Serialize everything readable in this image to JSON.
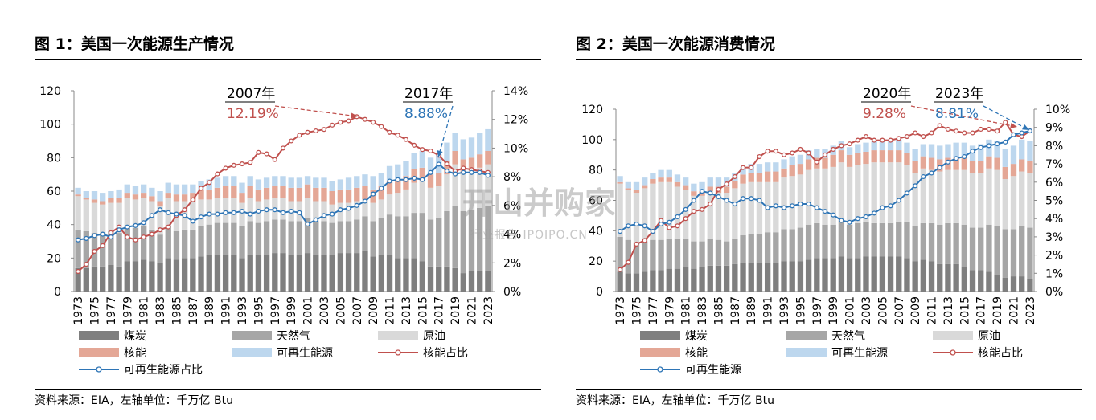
{
  "colors": {
    "coal": "#7f7f7f",
    "gas": "#a6a6a6",
    "oil": "#d9d9d9",
    "nuclear": "#e4a796",
    "renewable": "#bdd7ee",
    "nuclear_share": "#c0504d",
    "renewable_share": "#2e75b6"
  },
  "watermark": {
    "main": "开山并购家",
    "sub": "行业报告 IPOIPO.CN"
  },
  "chart_data": [
    {
      "type": "bar",
      "title": "图 1：美国一次能源生产情况",
      "source": "资料来源：EIA，左轴单位：千万亿 Btu",
      "years": [
        1973,
        1974,
        1975,
        1976,
        1977,
        1978,
        1979,
        1980,
        1981,
        1982,
        1983,
        1984,
        1985,
        1986,
        1987,
        1988,
        1989,
        1990,
        1991,
        1992,
        1993,
        1994,
        1995,
        1996,
        1997,
        1998,
        1999,
        2000,
        2001,
        2002,
        2003,
        2004,
        2005,
        2006,
        2007,
        2008,
        2009,
        2010,
        2011,
        2012,
        2013,
        2014,
        2015,
        2016,
        2017,
        2018,
        2019,
        2020,
        2021,
        2022,
        2023
      ],
      "x_tick_labels": [
        "1973",
        "1975",
        "1977",
        "1979",
        "1981",
        "1983",
        "1985",
        "1987",
        "1989",
        "1991",
        "1993",
        "1995",
        "1997",
        "1999",
        "2001",
        "2003",
        "2005",
        "2007",
        "2009",
        "2011",
        "2013",
        "2015",
        "2017",
        "2019",
        "2021",
        "2023"
      ],
      "ylim_left": [
        0,
        120
      ],
      "yticks_left": [
        "0",
        "20",
        "40",
        "60",
        "80",
        "100",
        "120"
      ],
      "ylim_right": [
        0,
        14
      ],
      "yticks_right": [
        "0%",
        "2%",
        "4%",
        "6%",
        "8%",
        "10%",
        "12%",
        "14%"
      ],
      "series": [
        {
          "name": "煤炭",
          "kind": "bar",
          "values": [
            14,
            14,
            15,
            15,
            16,
            15,
            18,
            18,
            19,
            18,
            17,
            20,
            19,
            20,
            20,
            21,
            22,
            22,
            22,
            22,
            20,
            22,
            22,
            22,
            23,
            23,
            22,
            22,
            23,
            22,
            22,
            22,
            23,
            23,
            23,
            24,
            21,
            22,
            22,
            20,
            20,
            20,
            18,
            15,
            15,
            15,
            14,
            11,
            12,
            12,
            12
          ]
        },
        {
          "name": "天然气",
          "kind": "bar",
          "values": [
            23,
            22,
            20,
            20,
            20,
            20,
            21,
            20,
            20,
            19,
            17,
            19,
            17,
            17,
            17,
            18,
            18,
            19,
            19,
            19,
            19,
            20,
            19,
            20,
            20,
            20,
            20,
            20,
            21,
            20,
            20,
            19,
            19,
            19,
            20,
            21,
            21,
            22,
            24,
            25,
            25,
            27,
            29,
            28,
            29,
            33,
            37,
            37,
            37,
            38,
            39
          ]
        },
        {
          "name": "原油",
          "kind": "bar",
          "values": [
            20,
            19,
            18,
            17,
            17,
            18,
            17,
            17,
            17,
            17,
            17,
            17,
            18,
            17,
            17,
            16,
            15,
            15,
            15,
            15,
            14,
            14,
            13,
            13,
            13,
            13,
            12,
            12,
            12,
            12,
            12,
            11,
            11,
            11,
            11,
            10,
            11,
            11,
            12,
            14,
            16,
            18,
            19,
            19,
            19,
            22,
            25,
            23,
            23,
            24,
            25
          ]
        },
        {
          "name": "核能",
          "kind": "bar",
          "values": [
            1,
            1,
            2,
            2,
            3,
            3,
            3,
            3,
            3,
            3,
            3,
            3,
            4,
            4,
            5,
            6,
            6,
            6,
            7,
            7,
            6,
            7,
            7,
            7,
            7,
            7,
            8,
            8,
            8,
            8,
            8,
            8,
            8,
            8,
            8,
            8,
            8,
            8,
            8,
            8,
            8,
            8,
            8,
            8,
            8,
            8,
            8,
            8,
            8,
            8,
            8
          ]
        },
        {
          "name": "可再生能源",
          "kind": "bar",
          "values": [
            4,
            4,
            5,
            5,
            4,
            5,
            5,
            5,
            5,
            5,
            6,
            6,
            6,
            6,
            5,
            5,
            6,
            6,
            6,
            6,
            6,
            6,
            6,
            6,
            6,
            6,
            6,
            6,
            5,
            6,
            6,
            6,
            6,
            7,
            7,
            7,
            8,
            8,
            9,
            9,
            9,
            10,
            10,
            10,
            11,
            11,
            11,
            12,
            12,
            13,
            13
          ]
        },
        {
          "name": "核能占比",
          "kind": "line",
          "axis": "right",
          "values": [
            1.4,
            1.9,
            2.8,
            3.2,
            4.1,
            4.5,
            3.8,
            3.6,
            3.8,
            4.0,
            4.3,
            4.5,
            5.3,
            5.7,
            6.4,
            7.2,
            7.6,
            8.2,
            8.6,
            8.8,
            8.9,
            9.0,
            9.7,
            9.6,
            9.2,
            10.0,
            10.5,
            10.9,
            11.1,
            11.2,
            11.3,
            11.6,
            11.8,
            11.9,
            12.19,
            12.0,
            11.8,
            11.5,
            11.1,
            10.9,
            10.6,
            10.2,
            9.9,
            9.8,
            9.5,
            8.9,
            8.4,
            8.6,
            8.5,
            8.4,
            8.3
          ]
        },
        {
          "name": "可再生能源占比",
          "kind": "line",
          "axis": "right",
          "values": [
            3.6,
            3.7,
            3.9,
            4.0,
            3.8,
            4.3,
            4.5,
            4.6,
            4.8,
            5.3,
            5.7,
            5.5,
            5.4,
            5.3,
            4.9,
            5.2,
            5.4,
            5.4,
            5.5,
            5.5,
            5.6,
            5.4,
            5.6,
            5.7,
            5.7,
            5.5,
            5.6,
            5.5,
            4.7,
            5.0,
            5.3,
            5.4,
            5.7,
            5.8,
            6.0,
            6.3,
            6.8,
            7.2,
            7.7,
            7.8,
            7.8,
            7.9,
            7.8,
            8.3,
            8.88,
            8.4,
            8.2,
            8.3,
            8.3,
            8.3,
            8.1
          ]
        }
      ],
      "annotations": [
        {
          "year_label": "2007年",
          "value_label": "12.19%",
          "series": "核能占比"
        },
        {
          "year_label": "2017年",
          "value_label": "8.88%",
          "series": "可再生能源占比"
        }
      ]
    },
    {
      "type": "bar",
      "title": "图 2：美国一次能源消费情况",
      "source": "资料来源：EIA，左轴单位：千万亿 Btu",
      "years": [
        1973,
        1974,
        1975,
        1976,
        1977,
        1978,
        1979,
        1980,
        1981,
        1982,
        1983,
        1984,
        1985,
        1986,
        1987,
        1988,
        1989,
        1990,
        1991,
        1992,
        1993,
        1994,
        1995,
        1996,
        1997,
        1998,
        1999,
        2000,
        2001,
        2002,
        2003,
        2004,
        2005,
        2006,
        2007,
        2008,
        2009,
        2010,
        2011,
        2012,
        2013,
        2014,
        2015,
        2016,
        2017,
        2018,
        2019,
        2020,
        2021,
        2022,
        2023
      ],
      "x_tick_labels": [
        "1973",
        "1975",
        "1977",
        "1979",
        "1981",
        "1983",
        "1985",
        "1987",
        "1989",
        "1991",
        "1993",
        "1995",
        "1997",
        "1999",
        "2001",
        "2003",
        "2005",
        "2007",
        "2009",
        "2011",
        "2013",
        "2015",
        "2017",
        "2019",
        "2021",
        "2023"
      ],
      "ylim_left": [
        0,
        120
      ],
      "yticks_left": [
        "0",
        "20",
        "40",
        "60",
        "80",
        "100",
        "120"
      ],
      "ylim_right": [
        0,
        10
      ],
      "yticks_right": [
        "0%",
        "1%",
        "2%",
        "3%",
        "4%",
        "5%",
        "6%",
        "7%",
        "8%",
        "9%",
        "10%"
      ],
      "series": [
        {
          "name": "煤炭",
          "kind": "bar",
          "values": [
            13,
            12,
            12,
            13,
            14,
            14,
            15,
            15,
            16,
            15,
            16,
            17,
            17,
            17,
            18,
            19,
            19,
            19,
            19,
            19,
            20,
            20,
            20,
            21,
            22,
            22,
            22,
            23,
            22,
            22,
            23,
            23,
            23,
            23,
            23,
            22,
            20,
            21,
            20,
            18,
            18,
            18,
            16,
            14,
            14,
            13,
            11,
            9,
            10,
            10,
            8
          ]
        },
        {
          "name": "天然气",
          "kind": "bar",
          "values": [
            23,
            22,
            20,
            20,
            20,
            20,
            20,
            20,
            19,
            18,
            17,
            18,
            17,
            16,
            17,
            18,
            19,
            19,
            20,
            20,
            21,
            21,
            22,
            23,
            23,
            22,
            22,
            24,
            22,
            23,
            23,
            22,
            22,
            22,
            23,
            24,
            23,
            24,
            25,
            26,
            27,
            27,
            28,
            28,
            28,
            31,
            32,
            32,
            31,
            33,
            34
          ]
        },
        {
          "name": "原油",
          "kind": "bar",
          "values": [
            35,
            33,
            33,
            35,
            37,
            38,
            37,
            34,
            32,
            30,
            30,
            31,
            31,
            32,
            33,
            34,
            34,
            34,
            33,
            33,
            34,
            35,
            35,
            36,
            36,
            37,
            38,
            38,
            38,
            38,
            38,
            40,
            40,
            40,
            39,
            37,
            35,
            36,
            35,
            35,
            35,
            35,
            36,
            36,
            36,
            37,
            37,
            33,
            35,
            36,
            36
          ]
        },
        {
          "name": "核能",
          "kind": "bar",
          "values": [
            1,
            1,
            2,
            2,
            3,
            3,
            3,
            3,
            3,
            3,
            3,
            3,
            4,
            4,
            5,
            6,
            6,
            6,
            7,
            7,
            6,
            7,
            7,
            7,
            7,
            7,
            8,
            8,
            8,
            8,
            8,
            8,
            8,
            8,
            8,
            8,
            8,
            8,
            8,
            8,
            8,
            8,
            8,
            8,
            8,
            8,
            8,
            8,
            8,
            8,
            8
          ]
        },
        {
          "name": "可再生能源",
          "kind": "bar",
          "values": [
            4,
            4,
            5,
            5,
            4,
            5,
            5,
            5,
            5,
            5,
            6,
            6,
            6,
            6,
            5,
            5,
            6,
            6,
            6,
            6,
            6,
            6,
            6,
            6,
            6,
            6,
            6,
            6,
            5,
            6,
            6,
            6,
            6,
            7,
            7,
            7,
            8,
            8,
            9,
            9,
            9,
            10,
            10,
            10,
            11,
            11,
            11,
            12,
            12,
            13,
            13
          ]
        },
        {
          "name": "核能占比",
          "kind": "line",
          "axis": "right",
          "values": [
            1.2,
            1.6,
            2.6,
            2.8,
            3.3,
            3.9,
            3.5,
            3.6,
            4.0,
            4.4,
            4.5,
            4.8,
            5.6,
            5.9,
            6.3,
            6.8,
            6.8,
            7.4,
            7.7,
            7.7,
            7.5,
            7.6,
            7.8,
            7.6,
            7.1,
            7.5,
            7.8,
            8.0,
            8.1,
            8.3,
            8.5,
            8.3,
            8.3,
            8.3,
            8.4,
            8.5,
            8.7,
            8.5,
            8.7,
            9.1,
            8.9,
            8.8,
            8.7,
            8.7,
            8.9,
            8.9,
            8.8,
            9.28,
            8.6,
            8.5,
            8.81
          ]
        },
        {
          "name": "可再生能源",
          "kind": "line",
          "axis": "right",
          "values": [
            3.3,
            3.6,
            3.7,
            3.6,
            3.3,
            3.7,
            3.8,
            4.1,
            4.5,
            5.0,
            5.5,
            5.4,
            5.2,
            5.0,
            4.8,
            5.1,
            5.1,
            5.0,
            4.6,
            4.7,
            4.6,
            4.7,
            4.8,
            4.8,
            4.6,
            4.4,
            4.2,
            3.9,
            3.8,
            4.0,
            4.1,
            4.3,
            4.6,
            4.7,
            5.0,
            5.4,
            5.8,
            6.3,
            6.5,
            6.8,
            7.1,
            7.3,
            7.4,
            7.7,
            7.9,
            8.0,
            8.1,
            8.2,
            8.6,
            8.7,
            8.81
          ]
        }
      ],
      "annotations": [
        {
          "year_label": "2020年",
          "value_label": "9.28%",
          "series": "核能占比"
        },
        {
          "year_label": "2023年",
          "value_label": "8.81%",
          "series": "可再生能源"
        }
      ]
    }
  ]
}
